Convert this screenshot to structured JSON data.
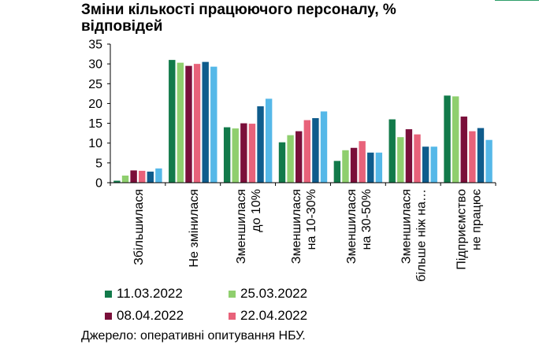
{
  "chart_data": {
    "type": "bar",
    "title": "Зміни кількості працюючого персоналу, % відповідей",
    "title_lines": [
      "Зміни кількості працюючого персоналу, %",
      "відповідей"
    ],
    "categories": [
      "Збільшилася",
      "Не змінилася",
      "Зменшилася до 10%",
      "Зменшилася на 10-30%",
      "Зменшилася на 30-50%",
      "Зменшилася більше ніж на…",
      "Підприємство не працює"
    ],
    "category_lines": [
      [
        "Збільшилася"
      ],
      [
        "Не змінилася"
      ],
      [
        "Зменшилася",
        "до 10%"
      ],
      [
        "Зменшилася",
        "на 10-30%"
      ],
      [
        "Зменшилася",
        "на 30-50%"
      ],
      [
        "Зменшилася",
        "більше ніж на…"
      ],
      [
        "Підприємство",
        "не працює"
      ]
    ],
    "series": [
      {
        "name": "11.03.2022",
        "color": "#127a4a",
        "values": [
          0.5,
          31,
          14,
          10.2,
          5.5,
          16,
          22
        ]
      },
      {
        "name": "25.03.2022",
        "color": "#8fcf6e",
        "values": [
          1.8,
          30.3,
          13.7,
          12,
          8.2,
          11.5,
          21.8
        ]
      },
      {
        "name": "08.04.2022",
        "color": "#7a0f3a",
        "values": [
          3.1,
          29.5,
          15,
          13,
          8.8,
          13.5,
          16.7
        ]
      },
      {
        "name": "22.04.2022",
        "color": "#e8627a",
        "values": [
          3,
          30,
          14.9,
          15.8,
          10.5,
          12.2,
          13
        ]
      },
      {
        "name": "",
        "color": "#0f5c8c",
        "values": [
          2.8,
          30.5,
          19.3,
          16.3,
          7.6,
          9.1,
          13.8
        ]
      },
      {
        "name": "",
        "color": "#55b8e8",
        "values": [
          3.6,
          29.3,
          21.2,
          18,
          7.6,
          9.1,
          10.8
        ]
      }
    ],
    "yticks": [
      0,
      5,
      10,
      15,
      20,
      25,
      30,
      35
    ],
    "ylim": [
      0,
      35
    ],
    "xlabel": "",
    "ylabel": "",
    "grid": false,
    "legend_position": "bottom"
  },
  "source": "Джерело: оперативні опитування НБУ."
}
